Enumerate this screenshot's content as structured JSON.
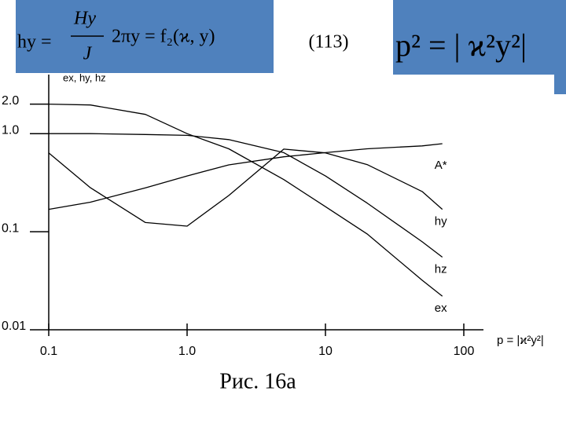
{
  "slide": {
    "formula_left": {
      "lhs": "hy =",
      "numerator": "Hy",
      "denominator": "J",
      "rhs": "2πy = f₂(ϰ, y)"
    },
    "equation_number": "(113)",
    "formula_right": "p² = | ϰ²y²|",
    "caption": "Рис. 16а"
  },
  "chart_data": {
    "type": "line",
    "ylabel": "ex, hy, hz",
    "xlabel": "p = |ϰ²y²|",
    "x": [
      0.1,
      0.2,
      0.5,
      1,
      2,
      5,
      10,
      20,
      50,
      70
    ],
    "log_x": true,
    "log_y": true,
    "xlim": [
      0.1,
      130
    ],
    "ylim": [
      0.01,
      4
    ],
    "xticks": [
      0.1,
      {
        "value": 1,
        "label": "1.0"
      },
      10,
      100
    ],
    "yticks": [
      0.01,
      0.1,
      {
        "value": 1,
        "label": "1.0"
      },
      {
        "value": 2,
        "label": "2.0"
      }
    ],
    "series": [
      {
        "name": "hy",
        "color": "#000000",
        "values": [
          0.636,
          0.281,
          0.124,
          0.114,
          0.234,
          0.696,
          0.636,
          0.484,
          0.257,
          0.169
        ]
      },
      {
        "name": "hz",
        "color": "#000000",
        "values": [
          1.0,
          1.0,
          0.98,
          0.96,
          0.87,
          0.64,
          0.37,
          0.196,
          0.079,
          0.055
        ]
      },
      {
        "name": "ex",
        "color": "#000000",
        "values": [
          2.0,
          1.96,
          1.57,
          1.0,
          0.7,
          0.34,
          0.18,
          0.095,
          0.032,
          0.022
        ]
      },
      {
        "name": "A*",
        "color": "#000000",
        "values": [
          0.169,
          0.2,
          0.28,
          0.37,
          0.48,
          0.58,
          0.64,
          0.7,
          0.75,
          0.79
        ]
      }
    ]
  }
}
